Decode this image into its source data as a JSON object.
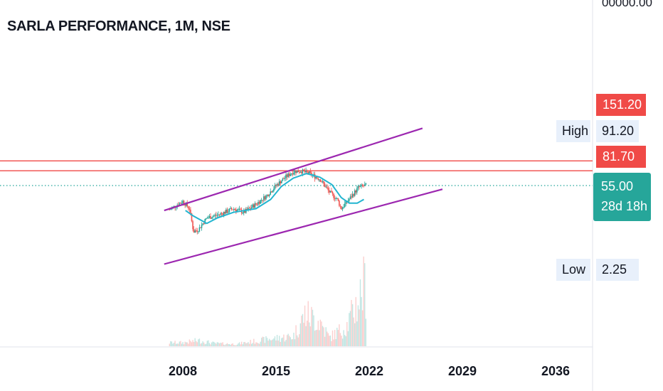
{
  "chart_data": {
    "type": "candlestick",
    "title": "SARLA PERFORMANCE, 1M, NSE",
    "x_ticks": [
      "2008",
      "2015",
      "2022",
      "2029",
      "2036"
    ],
    "x_tick_years": [
      2008,
      2015,
      2022,
      2029,
      2036
    ],
    "price_axis_top_label": "00000.00",
    "levels": {
      "red_tag": "151.20",
      "resistance": "81.70",
      "current_price": "55.00",
      "countdown": "28d 18h",
      "high_label": "High",
      "high_value": "91.20",
      "low_label": "Low",
      "low_value": "2.25"
    },
    "horizontal_lines_price": [
      81.7,
      71.0
    ],
    "channel_lines": [
      {
        "from": [
          2006.6,
          28
        ],
        "to": [
          2026.0,
          117
        ]
      },
      {
        "from": [
          2006.6,
          -30
        ],
        "to": [
          2027.5,
          51
        ]
      }
    ],
    "ohlc_monthly_approx": [
      [
        2007.0,
        29
      ],
      [
        2008.0,
        38
      ],
      [
        2008.5,
        30
      ],
      [
        2008.8,
        5
      ],
      [
        2009.2,
        8
      ],
      [
        2009.8,
        20
      ],
      [
        2010.8,
        24
      ],
      [
        2011.8,
        30
      ],
      [
        2012.6,
        26
      ],
      [
        2013.5,
        35
      ],
      [
        2014.3,
        44
      ],
      [
        2015.0,
        55
      ],
      [
        2015.7,
        64
      ],
      [
        2016.3,
        70
      ],
      [
        2016.8,
        71
      ],
      [
        2017.5,
        68
      ],
      [
        2018.3,
        62
      ],
      [
        2019.0,
        48
      ],
      [
        2019.6,
        40
      ],
      [
        2019.9,
        30
      ],
      [
        2020.6,
        42
      ],
      [
        2021.2,
        53
      ],
      [
        2021.7,
        55
      ]
    ],
    "moving_average": [
      [
        2008.2,
        28
      ],
      [
        2008.8,
        22
      ],
      [
        2009.8,
        14
      ],
      [
        2010.6,
        20
      ],
      [
        2011.8,
        26
      ],
      [
        2013.5,
        30
      ],
      [
        2014.6,
        40
      ],
      [
        2015.4,
        54
      ],
      [
        2016.3,
        63
      ],
      [
        2017.3,
        68
      ],
      [
        2018.3,
        64
      ],
      [
        2019.2,
        56
      ],
      [
        2019.9,
        42
      ],
      [
        2020.5,
        36
      ],
      [
        2021.1,
        36
      ],
      [
        2021.6,
        40
      ]
    ],
    "volume_relative": [
      [
        2008.0,
        0.05
      ],
      [
        2009.2,
        0.08
      ],
      [
        2010.4,
        0.04
      ],
      [
        2012.0,
        0.03
      ],
      [
        2014.5,
        0.1
      ],
      [
        2016.3,
        0.14
      ],
      [
        2017.2,
        0.45
      ],
      [
        2018.3,
        0.35
      ],
      [
        2019.0,
        0.12
      ],
      [
        2020.3,
        0.28
      ],
      [
        2021.1,
        0.6
      ],
      [
        2021.6,
        0.85
      ]
    ],
    "colors": {
      "up": "#26a69a",
      "down": "#ef5350",
      "channel": "#9c27b0",
      "horizontal": "#f04a47",
      "moving_average": "#22b5d0",
      "price_line": "#26a69a"
    }
  }
}
